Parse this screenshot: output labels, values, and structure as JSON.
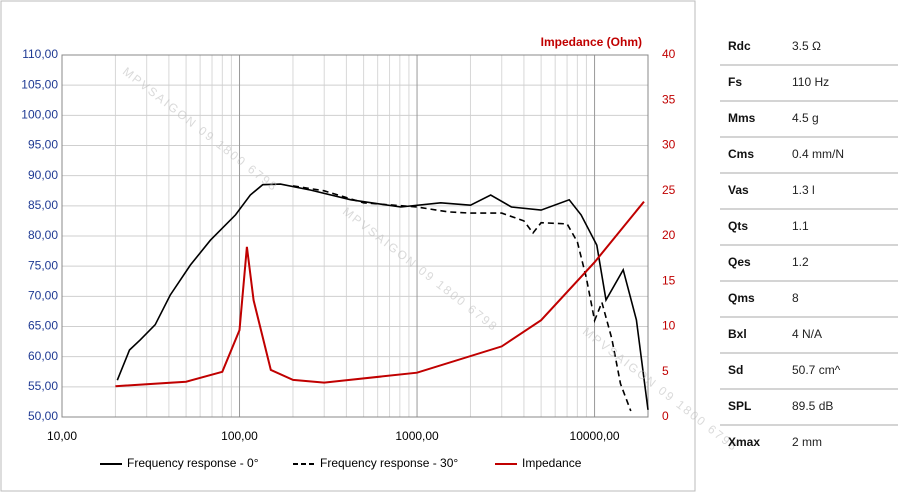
{
  "chart_data": {
    "type": "line",
    "xscale": "log",
    "grid": true,
    "watermark": "MPVSAIGON 09 1800 6798",
    "y2_label": "Impedance (Ohm)",
    "xlim": [
      10,
      20000
    ],
    "xticks": [
      {
        "value": 10,
        "label": "10,00"
      },
      {
        "value": 100,
        "label": "100,00"
      },
      {
        "value": 1000,
        "label": "1000,00"
      },
      {
        "value": 10000,
        "label": "10000,00"
      }
    ],
    "ylim": [
      50,
      110
    ],
    "yticks": [
      {
        "value": 50,
        "label": "50,00"
      },
      {
        "value": 55,
        "label": "55,00"
      },
      {
        "value": 60,
        "label": "60,00"
      },
      {
        "value": 65,
        "label": "65,00"
      },
      {
        "value": 70,
        "label": "70,00"
      },
      {
        "value": 75,
        "label": "75,00"
      },
      {
        "value": 80,
        "label": "80,00"
      },
      {
        "value": 85,
        "label": "85,00"
      },
      {
        "value": 90,
        "label": "90,00"
      },
      {
        "value": 95,
        "label": "95,00"
      },
      {
        "value": 100,
        "label": "100,00"
      },
      {
        "value": 105,
        "label": "105,00"
      },
      {
        "value": 110,
        "label": "110,00"
      }
    ],
    "y2lim": [
      0,
      40
    ],
    "y2ticks": [
      0,
      5,
      10,
      15,
      20,
      25,
      30,
      35,
      40
    ],
    "series": [
      {
        "name": "Frequency response - 0°",
        "color": "#000000",
        "dash": false,
        "axis": "y",
        "x": [
          20.5,
          24,
          27.6,
          33.5,
          40.7,
          52.9,
          68.5,
          94.9,
          115,
          135,
          170,
          252,
          424,
          810,
          1360,
          2000,
          2600,
          3400,
          5000,
          7200,
          8400,
          10300,
          11600,
          14500,
          17200,
          20000
        ],
        "values": [
          56.1,
          61.1,
          62.8,
          65.3,
          70.2,
          75.2,
          79.3,
          83.5,
          86.8,
          88.5,
          88.6,
          87.6,
          86,
          84.8,
          85.5,
          85.1,
          86.8,
          84.8,
          84.3,
          86,
          83.5,
          78.5,
          69.4,
          74.4,
          66.1,
          51.2
        ]
      },
      {
        "name": "Frequency response - 30°",
        "color": "#000000",
        "dash": true,
        "axis": "y",
        "x": [
          200,
          300,
          500,
          1000,
          1500,
          2000,
          3000,
          4000,
          4500,
          5000,
          7000,
          8000,
          9000,
          10000,
          11000,
          12500,
          14000,
          16000
        ],
        "values": [
          88.3,
          87.5,
          85.5,
          84.8,
          84,
          83.8,
          83.8,
          82.5,
          80.5,
          82.2,
          82,
          79,
          73,
          66,
          69,
          63,
          55.5,
          51
        ]
      },
      {
        "name": "Impedance",
        "color": "#c00000",
        "dash": false,
        "axis": "y2",
        "x": [
          20,
          50,
          80,
          100,
          110,
          120,
          150,
          200,
          300,
          1000,
          3000,
          5000,
          10000,
          19000
        ],
        "values": [
          3.4,
          3.9,
          5,
          9.6,
          18.8,
          12.9,
          5.2,
          4.1,
          3.8,
          4.9,
          7.8,
          10.7,
          17.1,
          23.8
        ]
      }
    ]
  },
  "table": {
    "rows": [
      [
        "Rdc",
        "3.5 Ω"
      ],
      [
        "Fs",
        "110 Hz"
      ],
      [
        "Mms",
        "4.5 g"
      ],
      [
        "Cms",
        "0.4 mm/N"
      ],
      [
        "Vas",
        "1.3 l"
      ],
      [
        "Qts",
        "1.1"
      ],
      [
        "Qes",
        "1.2"
      ],
      [
        "Qms",
        "8"
      ],
      [
        "Bxl",
        "4 N/A"
      ],
      [
        "Sd",
        "50.7 cm^"
      ],
      [
        "SPL",
        "89.5 dB"
      ],
      [
        "Xmax",
        "2 mm"
      ]
    ]
  }
}
